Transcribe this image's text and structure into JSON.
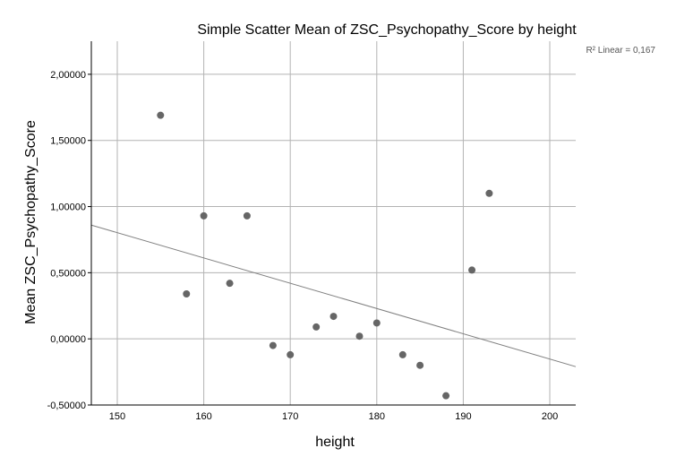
{
  "chart_data": {
    "type": "scatter",
    "title": "Simple Scatter Mean of ZSC_Psychopathy_Score by height",
    "xlabel": "height",
    "ylabel": "Mean ZSC_Psychopathy_Score",
    "xlim": [
      147,
      203
    ],
    "ylim": [
      -0.5,
      2.25
    ],
    "x_ticks": [
      150,
      160,
      170,
      180,
      190,
      200
    ],
    "x_tick_labels": [
      "150",
      "160",
      "170",
      "180",
      "190",
      "200"
    ],
    "y_ticks": [
      -0.5,
      0,
      0.5,
      1,
      1.5,
      2
    ],
    "y_tick_labels": [
      "-0,50000",
      "0,00000",
      "0,50000",
      "1,00000",
      "1,50000",
      "2,00000"
    ],
    "grid": true,
    "points": [
      {
        "x": 155,
        "y": 1.69
      },
      {
        "x": 158,
        "y": 0.34
      },
      {
        "x": 160,
        "y": 0.93
      },
      {
        "x": 163,
        "y": 0.42
      },
      {
        "x": 165,
        "y": 0.93
      },
      {
        "x": 168,
        "y": -0.05
      },
      {
        "x": 170,
        "y": -0.12
      },
      {
        "x": 173,
        "y": 0.09
      },
      {
        "x": 175,
        "y": 0.17
      },
      {
        "x": 178,
        "y": 0.02
      },
      {
        "x": 180,
        "y": 0.12
      },
      {
        "x": 183,
        "y": -0.12
      },
      {
        "x": 185,
        "y": -0.2
      },
      {
        "x": 188,
        "y": -0.43
      },
      {
        "x": 191,
        "y": 0.52
      },
      {
        "x": 193,
        "y": 1.1
      }
    ],
    "fit_line": {
      "x": [
        147,
        203
      ],
      "y": [
        0.86,
        -0.21
      ]
    },
    "fit_label": "R² Linear = 0,167",
    "colors": {
      "point": "#666666",
      "line": "#808080",
      "grid": "#b3b3b3",
      "axis": "#000000"
    }
  }
}
